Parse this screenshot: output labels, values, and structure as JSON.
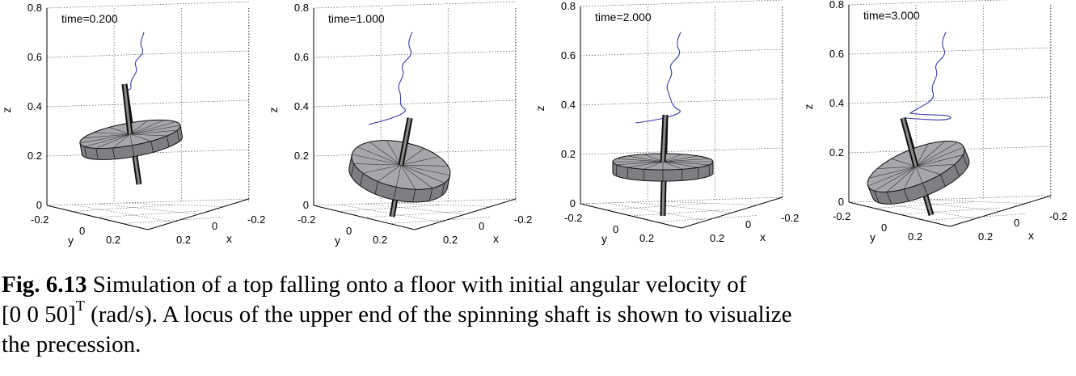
{
  "panels": [
    {
      "time_label": "time=0.200"
    },
    {
      "time_label": "time=1.000"
    },
    {
      "time_label": "time=2.000"
    },
    {
      "time_label": "time=3.000"
    }
  ],
  "axes": {
    "z_label": "z",
    "y_label": "y",
    "x_label": "x",
    "z_ticks": [
      "0",
      "0.2",
      "0.4",
      "0.6",
      "0.8"
    ],
    "y_ticks": [
      "-0.2",
      "0",
      "0.2"
    ],
    "x_ticks": [
      "0.2",
      "0",
      "-0.2"
    ]
  },
  "caption": {
    "fig_label": "Fig. 6.13",
    "text_part1": "Simulation of a top falling onto a floor with initial angular velocity of",
    "vector": "[0 0 50]",
    "superscript": "T",
    "text_part2": "(rad/s). A locus of the upper end of the spinning shaft is shown to visualize",
    "text_part3": "the precession."
  },
  "colors": {
    "disk_fill": "#a7a7ab",
    "disk_dark": "#7f7f83",
    "locus": "#3a3aa8",
    "grid": "#555555"
  }
}
